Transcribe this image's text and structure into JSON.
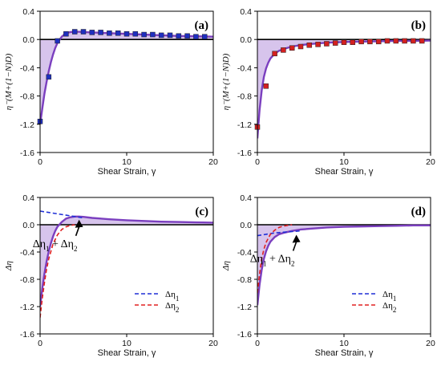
{
  "chart_data": [
    {
      "type": "line",
      "panel_label": "(a)",
      "xlabel": "Shear Strain, γ",
      "ylabel": "η⁻(M+(1−N)D)",
      "xlim": [
        0,
        20
      ],
      "ylim": [
        -1.6,
        0.4
      ],
      "xticks": [
        "0",
        "10",
        "20"
      ],
      "yticks": [
        "-1.6",
        "-1.2",
        "-0.8",
        "-0.4",
        "0.0",
        "0.4"
      ],
      "grid": false,
      "series": [
        {
          "kind": "markers",
          "marker": "square",
          "color": "#1f2fbf",
          "x": [
            0,
            1,
            2,
            3,
            4,
            5,
            6,
            7,
            8,
            9,
            10,
            11,
            12,
            13,
            14,
            15,
            16,
            17,
            18,
            19
          ],
          "y": [
            -1.16,
            -0.53,
            -0.02,
            0.08,
            0.11,
            0.11,
            0.1,
            0.1,
            0.09,
            0.09,
            0.08,
            0.08,
            0.07,
            0.07,
            0.06,
            0.06,
            0.05,
            0.05,
            0.04,
            0.04
          ]
        },
        {
          "kind": "line",
          "color": "#7b3fbf",
          "fill": "#c9b0e6",
          "x": [
            0,
            0.25,
            0.5,
            0.75,
            1,
            1.25,
            1.5,
            1.75,
            2,
            2.5,
            3,
            3.5,
            4,
            4.5,
            5,
            6,
            7,
            8,
            10,
            12,
            14,
            16,
            18,
            20
          ],
          "y": [
            -1.2,
            -0.98,
            -0.77,
            -0.6,
            -0.45,
            -0.32,
            -0.21,
            -0.12,
            -0.05,
            0.04,
            0.09,
            0.105,
            0.11,
            0.11,
            0.105,
            0.1,
            0.095,
            0.09,
            0.08,
            0.07,
            0.06,
            0.05,
            0.045,
            0.04
          ]
        }
      ]
    },
    {
      "type": "line",
      "panel_label": "(b)",
      "xlabel": "Shear Strain, γ",
      "ylabel": "η⁻(M+(1−N)D)",
      "xlim": [
        0,
        20
      ],
      "ylim": [
        -1.6,
        0.4
      ],
      "xticks": [
        "0",
        "10",
        "20"
      ],
      "yticks": [
        "-1.6",
        "-1.2",
        "-0.8",
        "-0.4",
        "0.0",
        "0.4"
      ],
      "grid": false,
      "series": [
        {
          "kind": "markers",
          "marker": "square",
          "color": "#d42020",
          "x": [
            0,
            1,
            2,
            3,
            4,
            5,
            6,
            7,
            8,
            9,
            10,
            11,
            12,
            13,
            14,
            15,
            16,
            17,
            18,
            19
          ],
          "y": [
            -1.24,
            -0.66,
            -0.2,
            -0.15,
            -0.12,
            -0.1,
            -0.08,
            -0.07,
            -0.06,
            -0.05,
            -0.04,
            -0.04,
            -0.03,
            -0.03,
            -0.03,
            -0.02,
            -0.02,
            -0.02,
            -0.02,
            -0.02
          ]
        },
        {
          "kind": "line",
          "color": "#7b3fbf",
          "fill": "#c9b0e6",
          "x": [
            0,
            0.25,
            0.5,
            0.75,
            1,
            1.25,
            1.5,
            2,
            2.5,
            3,
            4,
            5,
            6,
            7,
            8,
            10,
            12,
            14,
            16,
            18,
            20
          ],
          "y": [
            -1.4,
            -1.0,
            -0.72,
            -0.53,
            -0.41,
            -0.33,
            -0.27,
            -0.2,
            -0.16,
            -0.135,
            -0.1,
            -0.08,
            -0.065,
            -0.055,
            -0.045,
            -0.035,
            -0.03,
            -0.025,
            -0.02,
            -0.02,
            -0.015
          ]
        }
      ]
    },
    {
      "type": "line",
      "panel_label": "(c)",
      "xlabel": "Shear Strain, γ",
      "ylabel": "Δη",
      "xlim": [
        0,
        20
      ],
      "ylim": [
        -1.6,
        0.4
      ],
      "xticks": [
        "0",
        "10",
        "20"
      ],
      "yticks": [
        "-1.6",
        "-1.2",
        "-0.8",
        "-0.4",
        "0.0",
        "0.4"
      ],
      "grid": false,
      "annotation": {
        "prefix": "Δη",
        "sub1": "1",
        "mid": " + Δη",
        "sub2": "2",
        "at": [
          4.5,
          0.12
        ]
      },
      "legend": {
        "placement": "bottom-right",
        "items": [
          {
            "prefix": "Δη",
            "sub": "1",
            "color": "#1f2fd6"
          },
          {
            "prefix": "Δη",
            "sub": "2",
            "color": "#e02020"
          }
        ]
      },
      "series": [
        {
          "kind": "line",
          "color": "#7b3fbf",
          "fill": "#c9b0e6",
          "x": [
            0,
            0.25,
            0.5,
            0.75,
            1,
            1.25,
            1.5,
            1.75,
            2,
            2.5,
            3,
            3.5,
            4,
            4.5,
            5,
            6,
            7,
            8,
            10,
            12,
            14,
            16,
            18,
            20
          ],
          "y": [
            -1.2,
            -0.94,
            -0.72,
            -0.54,
            -0.39,
            -0.27,
            -0.17,
            -0.09,
            -0.03,
            0.04,
            0.09,
            0.11,
            0.12,
            0.12,
            0.115,
            0.1,
            0.09,
            0.08,
            0.065,
            0.055,
            0.045,
            0.04,
            0.035,
            0.03
          ]
        },
        {
          "kind": "dashed",
          "color": "#1f2fd6",
          "x": [
            0,
            1,
            2,
            3,
            4,
            5
          ],
          "y": [
            0.2,
            0.18,
            0.16,
            0.14,
            0.12,
            0.1
          ]
        },
        {
          "kind": "dashed",
          "color": "#e02020",
          "x": [
            0,
            0.25,
            0.5,
            0.75,
            1,
            1.5,
            2,
            2.5,
            3,
            3.5,
            4
          ],
          "y": [
            -1.36,
            -1.08,
            -0.85,
            -0.65,
            -0.5,
            -0.28,
            -0.15,
            -0.07,
            -0.03,
            -0.01,
            0.0
          ]
        }
      ]
    },
    {
      "type": "line",
      "panel_label": "(d)",
      "xlabel": "Shear Strain, γ",
      "ylabel": "Δη",
      "xlim": [
        0,
        20
      ],
      "ylim": [
        -1.6,
        0.4
      ],
      "xticks": [
        "0",
        "10",
        "20"
      ],
      "yticks": [
        "-1.6",
        "-1.2",
        "-0.8",
        "-0.4",
        "0.0",
        "0.4"
      ],
      "grid": false,
      "annotation": {
        "prefix": "Δη",
        "sub1": "1",
        "mid": " + Δη",
        "sub2": "2",
        "at": [
          4.5,
          -0.1
        ]
      },
      "legend": {
        "placement": "bottom-right",
        "items": [
          {
            "prefix": "Δη",
            "sub": "1",
            "color": "#1f2fd6"
          },
          {
            "prefix": "Δη",
            "sub": "2",
            "color": "#e02020"
          }
        ]
      },
      "series": [
        {
          "kind": "line",
          "color": "#7b3fbf",
          "fill": "#c9b0e6",
          "x": [
            0,
            0.25,
            0.5,
            0.75,
            1,
            1.25,
            1.5,
            2,
            2.5,
            3,
            4,
            5,
            6,
            8,
            10,
            12,
            14,
            16,
            18,
            20
          ],
          "y": [
            -1.18,
            -0.88,
            -0.66,
            -0.5,
            -0.39,
            -0.31,
            -0.25,
            -0.18,
            -0.14,
            -0.12,
            -0.09,
            -0.07,
            -0.06,
            -0.04,
            -0.03,
            -0.025,
            -0.02,
            -0.015,
            -0.01,
            -0.01
          ]
        },
        {
          "kind": "dashed",
          "color": "#1f2fd6",
          "x": [
            0,
            1,
            2,
            3,
            4,
            5
          ],
          "y": [
            -0.16,
            -0.14,
            -0.12,
            -0.11,
            -0.1,
            -0.09
          ]
        },
        {
          "kind": "dashed",
          "color": "#e02020",
          "x": [
            0,
            0.25,
            0.5,
            0.75,
            1,
            1.5,
            2,
            2.5,
            3,
            3.5,
            4
          ],
          "y": [
            -1.0,
            -0.72,
            -0.5,
            -0.36,
            -0.26,
            -0.14,
            -0.08,
            -0.04,
            -0.02,
            -0.01,
            0.0
          ]
        }
      ]
    }
  ]
}
